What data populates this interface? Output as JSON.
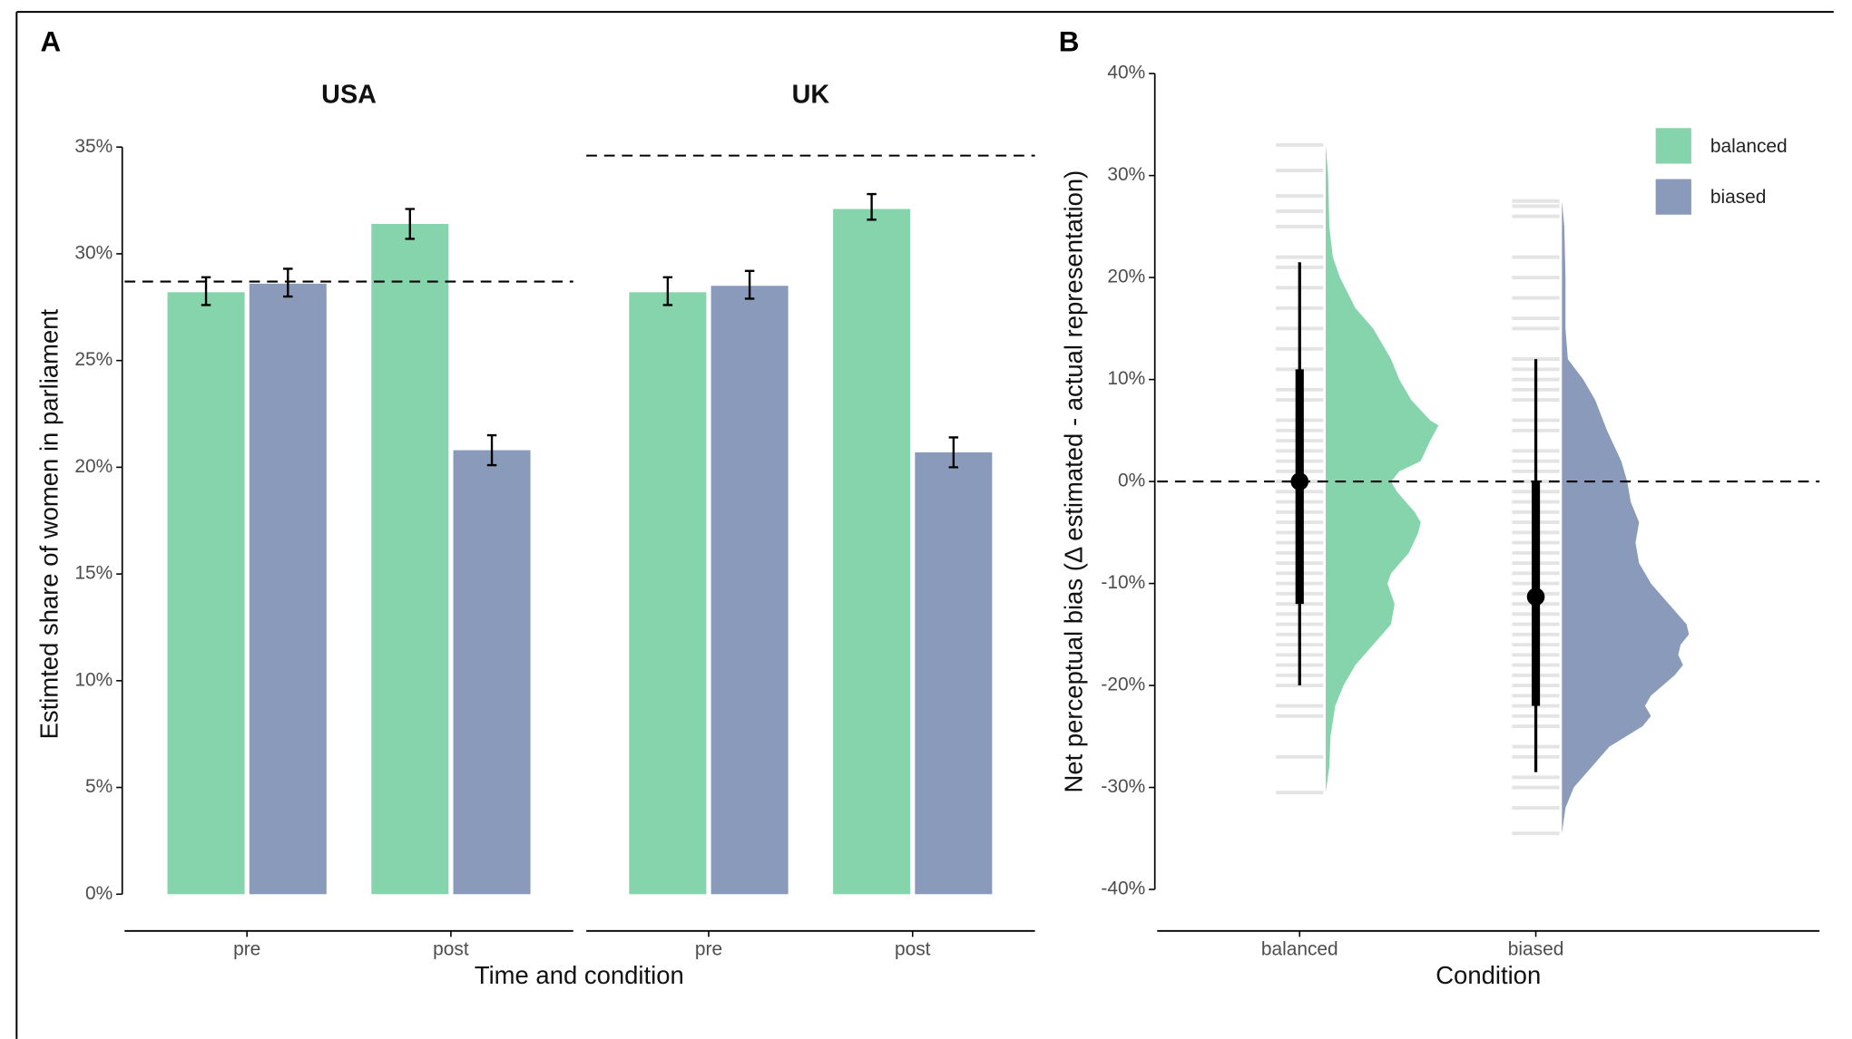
{
  "chart_data": [
    {
      "type": "bar",
      "panel_label": "A",
      "y_label": "Estimted share of women in parliament",
      "x_label": "Time and condition",
      "ylim": [
        0,
        35
      ],
      "yticks": [
        {
          "value": 0,
          "label": "0%"
        },
        {
          "value": 5,
          "label": "5%"
        },
        {
          "value": 10,
          "label": "10%"
        },
        {
          "value": 15,
          "label": "15%"
        },
        {
          "value": 20,
          "label": "20%"
        },
        {
          "value": 25,
          "label": "25%"
        },
        {
          "value": 30,
          "label": "30%"
        },
        {
          "value": 35,
          "label": "35%"
        }
      ],
      "facets": [
        {
          "title": "USA",
          "reference_line": 28.7,
          "categories": [
            "pre",
            "post"
          ],
          "series": [
            {
              "color": "#85d4ab",
              "values": [
                28.2,
                31.4
              ],
              "lower": [
                27.6,
                30.7
              ],
              "upper": [
                28.9,
                32.1
              ]
            },
            {
              "color": "#8a9aba",
              "values": [
                28.6,
                20.8
              ],
              "lower": [
                28.0,
                20.1
              ],
              "upper": [
                29.3,
                21.5
              ]
            }
          ]
        },
        {
          "title": "UK",
          "reference_line": 34.6,
          "categories": [
            "pre",
            "post"
          ],
          "series": [
            {
              "color": "#85d4ab",
              "values": [
                28.2,
                32.1
              ],
              "lower": [
                27.6,
                31.6
              ],
              "upper": [
                28.9,
                32.8
              ]
            },
            {
              "color": "#8a9aba",
              "values": [
                28.5,
                20.7
              ],
              "lower": [
                27.9,
                20.0
              ],
              "upper": [
                29.2,
                21.4
              ]
            }
          ]
        }
      ]
    },
    {
      "type": "raincloud",
      "panel_label": "B",
      "y_label": "Net perceptual bias (Δ estimated - actual representation)",
      "x_label": "Condition",
      "ylim": [
        -40,
        40
      ],
      "yticks": [
        {
          "value": -40,
          "label": "-40%"
        },
        {
          "value": -30,
          "label": "-30%"
        },
        {
          "value": -20,
          "label": "-20%"
        },
        {
          "value": -10,
          "label": "-10%"
        },
        {
          "value": 0,
          "label": "0%"
        },
        {
          "value": 10,
          "label": "10%"
        },
        {
          "value": 20,
          "label": "20%"
        },
        {
          "value": 30,
          "label": "30%"
        },
        {
          "value": 40,
          "label": "40%"
        }
      ],
      "reference_line": 0,
      "categories": [
        "balanced",
        "biased"
      ],
      "series": [
        {
          "name": "balanced",
          "color": "#85d4ab",
          "points": [
            33,
            30.5,
            28,
            26.5,
            25,
            22,
            21,
            19,
            17,
            15,
            13,
            11,
            9,
            8,
            6,
            5,
            4,
            3,
            2,
            1,
            0,
            -1,
            -2,
            -3,
            -4,
            -5,
            -6,
            -7,
            -8,
            -9,
            -10,
            -11,
            -12,
            -13,
            -14,
            -15,
            -16,
            -17,
            -18,
            -19,
            -20,
            -22,
            -23,
            -27,
            -30.5
          ],
          "density_y": [
            33,
            30,
            25,
            22,
            20,
            17,
            15,
            12,
            10,
            8,
            6,
            5.5,
            4,
            2,
            1,
            0,
            -1,
            -3,
            -4,
            -5,
            -7,
            -9,
            -10,
            -12,
            -14,
            -16,
            -18,
            -20,
            -22,
            -25,
            -28,
            -30.5
          ],
          "density": [
            0,
            0.002,
            0.003,
            0.006,
            0.012,
            0.025,
            0.04,
            0.055,
            0.062,
            0.072,
            0.088,
            0.095,
            0.088,
            0.08,
            0.062,
            0.055,
            0.06,
            0.075,
            0.08,
            0.078,
            0.07,
            0.055,
            0.052,
            0.058,
            0.055,
            0.04,
            0.025,
            0.015,
            0.008,
            0.004,
            0.003,
            0
          ],
          "median": 0,
          "inner": [
            -12,
            11
          ],
          "outer": [
            -20,
            21.5
          ]
        },
        {
          "name": "biased",
          "color": "#8a9aba",
          "points": [
            27.5,
            27,
            26,
            22,
            20,
            18,
            16,
            15,
            12,
            11,
            10,
            9,
            8,
            6,
            5,
            3,
            2,
            1,
            0,
            -1,
            -2,
            -3,
            -4,
            -5,
            -6,
            -7,
            -8,
            -9,
            -10,
            -11,
            -12,
            -13,
            -14,
            -15,
            -16,
            -17,
            -18,
            -19,
            -20,
            -21,
            -22,
            -23,
            -24,
            -26,
            -27,
            -29,
            -30,
            -32,
            -34.5
          ],
          "density_y": [
            27.5,
            25,
            20,
            15,
            12,
            10,
            8,
            5,
            2,
            0,
            -2,
            -4,
            -6,
            -8,
            -10,
            -12,
            -14,
            -15,
            -16,
            -17,
            -18,
            -19,
            -21,
            -22,
            -23,
            -24,
            -26,
            -28,
            -30,
            -32,
            -34.5
          ],
          "density": [
            0,
            0.002,
            0.003,
            0.003,
            0.005,
            0.018,
            0.028,
            0.038,
            0.05,
            0.055,
            0.058,
            0.065,
            0.062,
            0.065,
            0.075,
            0.09,
            0.105,
            0.107,
            0.1,
            0.098,
            0.102,
            0.095,
            0.075,
            0.07,
            0.075,
            0.068,
            0.04,
            0.025,
            0.01,
            0.003,
            0
          ],
          "median": -11.3,
          "inner": [
            -22,
            0
          ],
          "outer": [
            -28.5,
            12
          ]
        }
      ]
    }
  ]
}
